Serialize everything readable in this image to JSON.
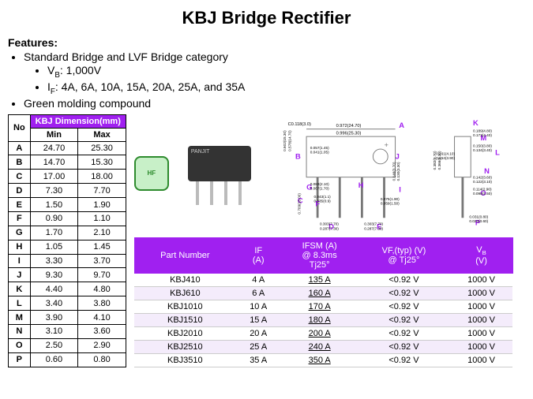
{
  "title": "KBJ Bridge Rectifier",
  "features_title": "Features:",
  "features": {
    "f1": "Standard Bridge and LVF Bridge category",
    "f1a_label": "V",
    "f1a_sub": "B",
    "f1a_val": ": 1,000V",
    "f1b_label": "I",
    "f1b_sub": "F",
    "f1b_val": ": 4A, 6A, 10A, 15A, 20A, 25A, and 35A",
    "f2": "Green molding compound"
  },
  "dim_table": {
    "title": "KBJ Dimension(mm)",
    "no": "No",
    "min": "Min",
    "max": "Max",
    "rows": [
      {
        "n": "A",
        "min": "24.70",
        "max": "25.30"
      },
      {
        "n": "B",
        "min": "14.70",
        "max": "15.30"
      },
      {
        "n": "C",
        "min": "17.00",
        "max": "18.00"
      },
      {
        "n": "D",
        "min": "7.30",
        "max": "7.70"
      },
      {
        "n": "E",
        "min": "1.50",
        "max": "1.90"
      },
      {
        "n": "F",
        "min": "0.90",
        "max": "1.10"
      },
      {
        "n": "G",
        "min": "1.70",
        "max": "2.10"
      },
      {
        "n": "H",
        "min": "1.05",
        "max": "1.45"
      },
      {
        "n": "I",
        "min": "3.30",
        "max": "3.70"
      },
      {
        "n": "J",
        "min": "9.30",
        "max": "9.70"
      },
      {
        "n": "K",
        "min": "4.40",
        "max": "4.80"
      },
      {
        "n": "L",
        "min": "3.40",
        "max": "3.80"
      },
      {
        "n": "M",
        "min": "3.90",
        "max": "4.10"
      },
      {
        "n": "N",
        "min": "3.10",
        "max": "3.60"
      },
      {
        "n": "O",
        "min": "2.50",
        "max": "2.90"
      },
      {
        "n": "P",
        "min": "0.60",
        "max": "0.80"
      }
    ]
  },
  "parts_table": {
    "h1": "Part Number",
    "h2": "IF\n(A)",
    "h3_l1": "IFSM (A)",
    "h3_l2": "@ 8.3ms",
    "h3_l3": "Tj25°",
    "h4_l1": "VF,(typ) (V)",
    "h4_l2": "@ Tj25°",
    "h5": "VB\n(V)",
    "rows": [
      {
        "pn": "KBJ410",
        "if": "4 A",
        "ifsm": "135 A",
        "vf": "<0.92 V",
        "vb": "1000 V"
      },
      {
        "pn": "KBJ610",
        "if": "6 A",
        "ifsm": "160 A",
        "vf": "<0.92 V",
        "vb": "1000 V"
      },
      {
        "pn": "KBJ1010",
        "if": "10 A",
        "ifsm": "170 A",
        "vf": "<0.92 V",
        "vb": "1000 V"
      },
      {
        "pn": "KBJ1510",
        "if": "15 A",
        "ifsm": "180 A",
        "vf": "<0.92 V",
        "vb": "1000 V"
      },
      {
        "pn": "KBJ2010",
        "if": "20 A",
        "ifsm": "200 A",
        "vf": "<0.92 V",
        "vb": "1000 V"
      },
      {
        "pn": "KBJ2510",
        "if": "25 A",
        "ifsm": "240 A",
        "vf": "<0.92 V",
        "vb": "1000 V"
      },
      {
        "pn": "KBJ3510",
        "if": "35 A",
        "ifsm": "350 A",
        "vf": "<0.92 V",
        "vb": "1000 V"
      }
    ]
  },
  "badge_label": "HF",
  "chip_label": "PANJIT",
  "diagram": {
    "color_dim": "#a020f0",
    "color_line": "#555",
    "labels": [
      "A",
      "B",
      "C",
      "D",
      "E",
      "F",
      "G",
      "H",
      "I",
      "J",
      "K",
      "L",
      "M",
      "N",
      "O",
      "P"
    ],
    "dims": {
      "A": "0.996(25.30)",
      "Atop": "0.972(24.70)",
      "Btop": "0.602(15.30)",
      "B": "0.578(14.70)",
      "C": "C0.118(3.0)",
      "D": "0.303(7.70)",
      "Dmin": "0.287(7.30)",
      "E": "0.075(1.90)",
      "Emin": "0.059(1.50)",
      "F": "0.043(1.1)",
      "Fmin": "0.035(0.9)",
      "G": "0.083(2.10)",
      "Gmin": "0.067(1.70)",
      "H": "0.057(1.45)",
      "Hmin": "0.041(1.05)",
      "I": "0.146(3.70)",
      "Imin": "0.130(3.30)",
      "J": "0.382(9.70)",
      "Jmin": "0.366(9.30)",
      "K": "0.189(4.80)",
      "Kmin": "0.173(4.40)",
      "L": "0.150(3.80)",
      "Lmin": "0.134(3.40)",
      "M": "0.161(4.10)",
      "Mmin": "0.154(3.90)",
      "N": "0.142(3.60)",
      "Nmin": "0.122(3.10)",
      "O": "0.114(2.90)",
      "Omin": "0.098(2.50)",
      "P": "0.031(0.80)",
      "Pmin": "0.023(0.60)",
      "leg": "0.709(18.00)"
    }
  }
}
